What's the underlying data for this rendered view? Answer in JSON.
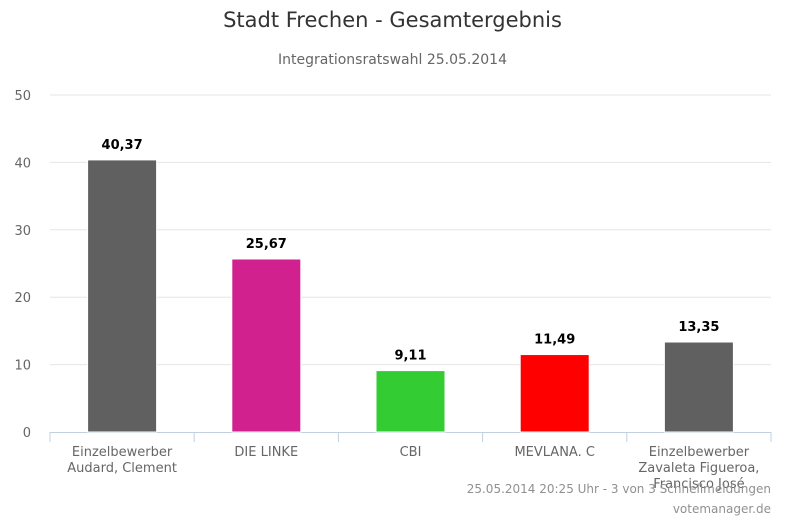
{
  "chart_data": {
    "type": "bar",
    "title": "Stadt Frechen - Gesamtergebnis",
    "subtitle": "Integrationsratswahl 25.05.2014",
    "categories": [
      [
        "Einzelbewerber",
        "Audard, Clement"
      ],
      [
        "DIE LINKE"
      ],
      [
        "CBI"
      ],
      [
        "MEVLANA. C"
      ],
      [
        "Einzelbewerber",
        "Zavaleta Figueroa,",
        "Francisco José"
      ]
    ],
    "values": [
      40.37,
      25.67,
      9.11,
      11.49,
      13.35
    ],
    "value_labels": [
      "40,37",
      "25,67",
      "9,11",
      "11,49",
      "13,35"
    ],
    "colors": [
      "#606060",
      "#d0218f",
      "#33cc33",
      "#ff0000",
      "#606060"
    ],
    "ylim": [
      0,
      50
    ],
    "yticks": [
      0,
      10,
      20,
      30,
      40,
      50
    ],
    "grid": true,
    "legend": "none"
  },
  "footer": {
    "status": "25.05.2014 20:25 Uhr - 3 von 3 Schnellmeldungen",
    "source": "votemanager.de"
  }
}
